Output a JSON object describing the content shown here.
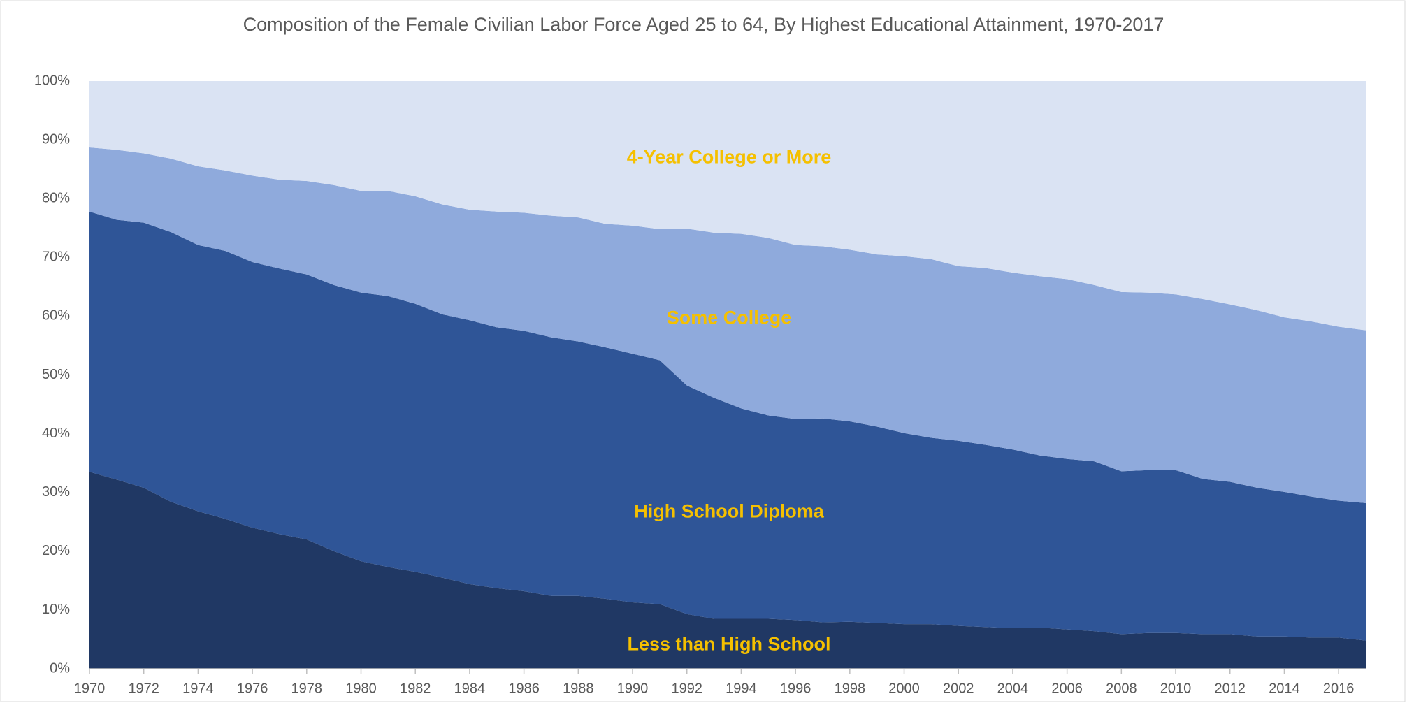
{
  "chart_data": {
    "type": "stacked_area",
    "title": "Composition of the Female Civilian Labor Force Aged 25 to 64, By Highest Educational Attainment, 1970-2017",
    "x": [
      1970,
      1971,
      1972,
      1973,
      1974,
      1975,
      1976,
      1977,
      1978,
      1979,
      1980,
      1981,
      1982,
      1983,
      1984,
      1985,
      1986,
      1987,
      1988,
      1989,
      1990,
      1991,
      1992,
      1993,
      1994,
      1995,
      1996,
      1997,
      1998,
      1999,
      2000,
      2001,
      2002,
      2003,
      2004,
      2005,
      2006,
      2007,
      2008,
      2009,
      2010,
      2011,
      2012,
      2013,
      2014,
      2015,
      2016,
      2017
    ],
    "xlim": [
      1970,
      2017
    ],
    "xticks": [
      1970,
      1972,
      1974,
      1976,
      1978,
      1980,
      1982,
      1984,
      1986,
      1988,
      1990,
      1992,
      1994,
      1996,
      1998,
      2000,
      2002,
      2004,
      2006,
      2008,
      2010,
      2012,
      2014,
      2016
    ],
    "ylim": [
      0,
      100
    ],
    "yticks": [
      {
        "value": 0,
        "label": "0%"
      },
      {
        "value": 10,
        "label": "10%"
      },
      {
        "value": 20,
        "label": "20%"
      },
      {
        "value": 30,
        "label": "30%"
      },
      {
        "value": 40,
        "label": "40%"
      },
      {
        "value": 50,
        "label": "50%"
      },
      {
        "value": 60,
        "label": "60%"
      },
      {
        "value": 70,
        "label": "70%"
      },
      {
        "value": 80,
        "label": "80%"
      },
      {
        "value": 90,
        "label": "90%"
      },
      {
        "value": 100,
        "label": "100%"
      }
    ],
    "series": [
      {
        "name": "Less than High School",
        "color": "#203864",
        "values": [
          33.5,
          32.2,
          30.8,
          28.4,
          26.8,
          25.5,
          24.0,
          22.9,
          22.0,
          20.0,
          18.3,
          17.3,
          16.5,
          15.5,
          14.4,
          13.7,
          13.2,
          12.4,
          12.4,
          11.9,
          11.3,
          11.0,
          9.3,
          8.5,
          8.5,
          8.5,
          8.3,
          7.9,
          8.0,
          7.8,
          7.6,
          7.6,
          7.3,
          7.1,
          6.9,
          7.0,
          6.7,
          6.4,
          5.9,
          6.1,
          6.1,
          5.9,
          5.9,
          5.5,
          5.5,
          5.3,
          5.3,
          4.8
        ]
      },
      {
        "name": "High School Diploma",
        "color": "#2f5597",
        "values": [
          44.3,
          44.2,
          45.1,
          45.9,
          45.3,
          45.6,
          45.2,
          45.2,
          45.1,
          45.3,
          45.7,
          46.1,
          45.6,
          44.8,
          44.9,
          44.4,
          44.3,
          44.0,
          43.3,
          42.8,
          42.3,
          41.5,
          38.9,
          37.6,
          35.8,
          34.6,
          34.2,
          34.7,
          34.1,
          33.4,
          32.5,
          31.7,
          31.5,
          31.0,
          30.4,
          29.3,
          29.0,
          28.9,
          27.7,
          27.7,
          27.7,
          26.4,
          25.9,
          25.3,
          24.6,
          24.0,
          23.3,
          23.4
        ]
      },
      {
        "name": "Some College",
        "color": "#8faadc",
        "values": [
          10.9,
          11.9,
          11.8,
          12.5,
          13.4,
          13.7,
          14.7,
          15.1,
          15.9,
          17.0,
          17.3,
          17.9,
          18.3,
          18.7,
          18.8,
          19.7,
          20.1,
          20.7,
          21.1,
          21.0,
          21.8,
          22.3,
          26.7,
          28.1,
          29.7,
          30.2,
          29.6,
          29.3,
          29.2,
          29.3,
          30.1,
          30.4,
          29.7,
          30.1,
          30.1,
          30.5,
          30.6,
          30.0,
          30.5,
          30.2,
          29.9,
          30.6,
          30.2,
          30.2,
          29.7,
          29.8,
          29.6,
          29.4
        ]
      },
      {
        "name": "4-Year College or More",
        "color": "#dae3f3",
        "values": [
          11.3,
          11.7,
          12.3,
          13.2,
          14.5,
          15.2,
          16.1,
          16.8,
          17.0,
          17.7,
          18.7,
          18.7,
          19.6,
          21.0,
          21.9,
          22.2,
          22.4,
          22.9,
          23.2,
          24.3,
          24.6,
          25.2,
          25.1,
          25.8,
          26.0,
          26.7,
          27.9,
          28.1,
          28.7,
          29.5,
          29.8,
          30.3,
          31.5,
          31.8,
          32.6,
          33.2,
          33.7,
          34.7,
          35.9,
          36.0,
          36.3,
          37.1,
          38.0,
          39.0,
          40.2,
          40.9,
          41.8,
          42.4
        ]
      }
    ]
  }
}
